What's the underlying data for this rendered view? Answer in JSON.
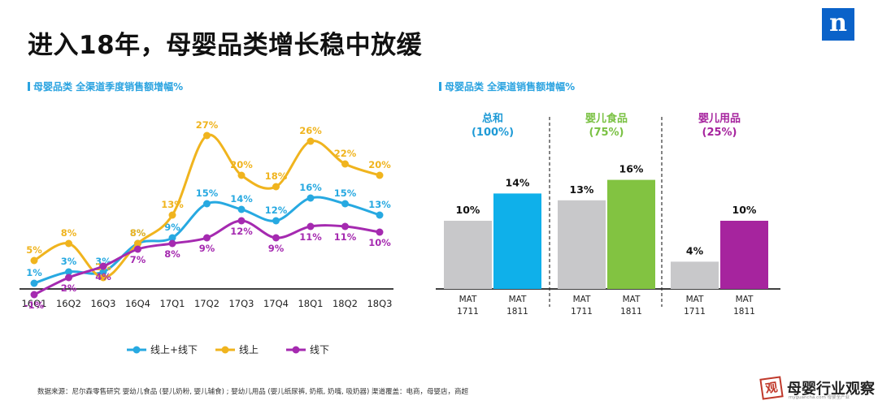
{
  "page": {
    "title": "进入18年，母婴品类增长稳中放缓",
    "brand": "n"
  },
  "chart_data": [
    {
      "type": "line",
      "title": "母婴品类 全渠道季度销售额增幅%",
      "categories": [
        "16Q1",
        "16Q2",
        "16Q3",
        "16Q4",
        "17Q1",
        "17Q2",
        "17Q3",
        "17Q4",
        "18Q1",
        "18Q2",
        "18Q3"
      ],
      "ylim": [
        -2,
        30
      ],
      "grid": false,
      "legend_placement": "bottom",
      "series": [
        {
          "name": "线上+线下",
          "color": "#27a9e1",
          "values": [
            1,
            3,
            3,
            8,
            9,
            15,
            14,
            12,
            16,
            15,
            13
          ]
        },
        {
          "name": "线上",
          "color": "#f0b41e",
          "values": [
            5,
            8,
            2,
            8,
            13,
            27,
            20,
            18,
            26,
            22,
            20
          ]
        },
        {
          "name": "线下",
          "color": "#a52ab0",
          "values": [
            -1,
            2,
            4,
            7,
            8,
            9,
            12,
            9,
            11,
            11,
            10
          ]
        }
      ]
    },
    {
      "type": "bar",
      "title": "母婴品类 全渠道销售额增幅%",
      "ylim": [
        0,
        20
      ],
      "groups": [
        {
          "name": "总和",
          "share": "(100%)",
          "name_color": "#1e9ad6",
          "bars": [
            {
              "label": "MAT\n1711",
              "value": 10,
              "color": "#c8c8ca"
            },
            {
              "label": "MAT\n1811",
              "value": 14,
              "color": "#0fb0ea"
            }
          ]
        },
        {
          "name": "婴儿食品",
          "share": "(75%)",
          "name_color": "#7ac143",
          "bars": [
            {
              "label": "MAT\n1711",
              "value": 13,
              "color": "#c8c8ca"
            },
            {
              "label": "MAT\n1811",
              "value": 16,
              "color": "#82c341"
            }
          ]
        },
        {
          "name": "婴儿用品",
          "share": "(25%)",
          "name_color": "#a6249e",
          "bars": [
            {
              "label": "MAT\n1711",
              "value": 4,
              "color": "#c8c8ca"
            },
            {
              "label": "MAT\n1811",
              "value": 10,
              "color": "#a6249e"
            }
          ]
        }
      ]
    }
  ],
  "footer": {
    "source": "数据来源：尼尔森零售研究  婴幼儿食品 (婴儿奶粉, 婴儿辅食) ; 婴幼儿用品 (婴儿纸尿裤, 奶瓶, 奶嘴, 吸奶器)  渠道覆盖：电商，母婴店，商超",
    "watermark_badge": "观",
    "watermark_text": "母婴行业观察",
    "watermark_url": "myguancha.com 母婴全产业"
  }
}
